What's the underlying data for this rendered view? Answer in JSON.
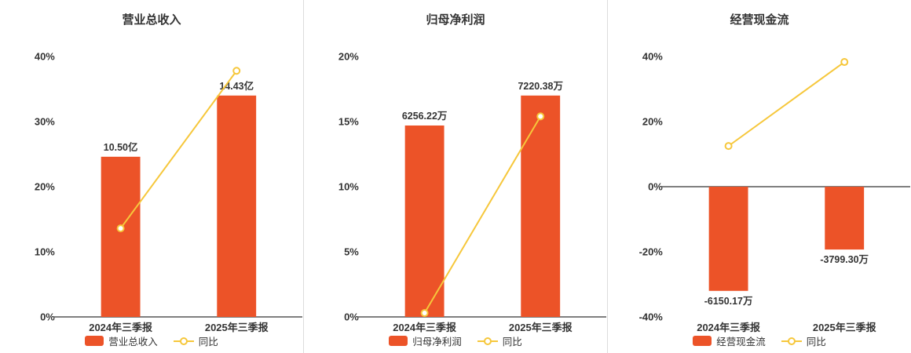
{
  "colors": {
    "bar": "#ec5328",
    "line": "#f6c73b",
    "axis": "#555555",
    "text": "#333333"
  },
  "chart_data": [
    {
      "type": "bar+line",
      "title": "营业总收入",
      "categories": [
        "2024年三季报",
        "2025年三季报"
      ],
      "y_axis": {
        "min": 0,
        "max": 40,
        "tick_labels": [
          "40%",
          "30%",
          "20%",
          "10%",
          "0%"
        ]
      },
      "bar_series": {
        "name": "营业总收入",
        "value_labels": [
          "10.50亿",
          "14.43亿"
        ],
        "plot_values": [
          24.6,
          34.0
        ]
      },
      "line_series": {
        "name": "同比",
        "plot_values": [
          13.6,
          37.8
        ]
      },
      "legend_position": "bottom",
      "grid": false
    },
    {
      "type": "bar+line",
      "title": "归母净利润",
      "categories": [
        "2024年三季报",
        "2025年三季报"
      ],
      "y_axis": {
        "min": 0,
        "max": 20,
        "tick_labels": [
          "20%",
          "15%",
          "10%",
          "5%",
          "0%"
        ]
      },
      "bar_series": {
        "name": "归母净利润",
        "value_labels": [
          "6256.22万",
          "7220.38万"
        ],
        "plot_values": [
          14.7,
          17.0
        ]
      },
      "line_series": {
        "name": "同比",
        "plot_values": [
          0.3,
          15.4
        ]
      },
      "legend_position": "bottom",
      "grid": false
    },
    {
      "type": "bar+line",
      "title": "经营现金流",
      "categories": [
        "2024年三季报",
        "2025年三季报"
      ],
      "y_axis": {
        "min": -40,
        "max": 40,
        "tick_labels": [
          "40%",
          "20%",
          "0%",
          "-20%",
          "-40%"
        ]
      },
      "bar_series": {
        "name": "经营现金流",
        "value_labels": [
          "-6150.17万",
          "-3799.30万"
        ],
        "plot_values": [
          -32.0,
          -19.3
        ]
      },
      "line_series": {
        "name": "同比",
        "plot_values": [
          12.5,
          38.3
        ]
      },
      "legend_position": "bottom",
      "grid": false
    }
  ]
}
